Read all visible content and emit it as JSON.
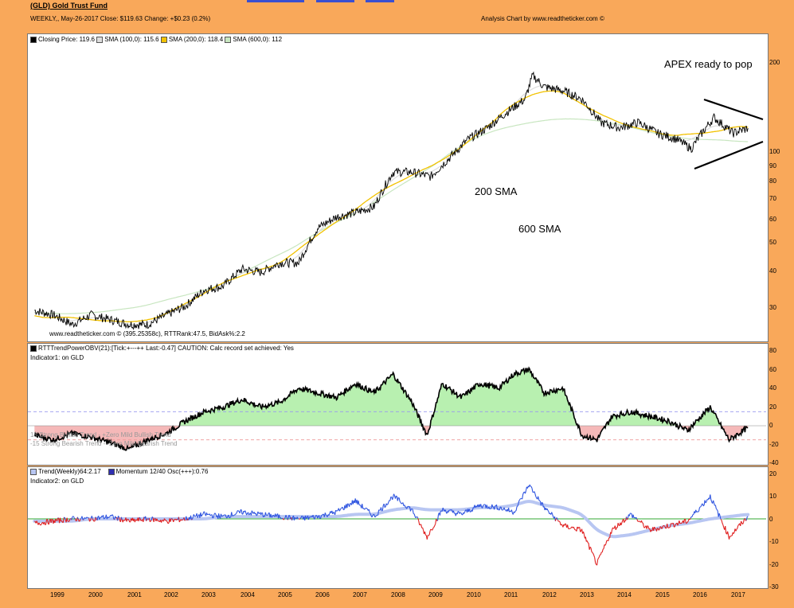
{
  "header": {
    "title": "(GLD) Gold Trust Fund",
    "info": "WEEKLY,, May-26-2017   Close: $119.63   Change: +$0.23  (0.2%)",
    "credit": "Analysis Chart by www.readtheticker.com ©"
  },
  "panel1": {
    "legend": [
      {
        "label": "Closing Price: 119.6",
        "color": "#000000"
      },
      {
        "label": "SMA (100,0): 115.6",
        "color": "#dddddd"
      },
      {
        "label": "SMA (200,0): 118.4",
        "color": "#f2c200"
      },
      {
        "label": "SMA (600,0): 112",
        "color": "#c8e6c0"
      }
    ],
    "footer": "www.readtheticker.com © (395.25358c), RTTRank:47.5, BidAsk%:2.2",
    "annotations": {
      "apex": "APEX ready to pop",
      "sma200": "200 SMA",
      "sma600": "600 SMA"
    },
    "yticks": [
      "200",
      "100",
      "90",
      "80",
      "70",
      "60",
      "50",
      "40",
      "30"
    ]
  },
  "panel2": {
    "title": "RTTTrendPowerOBV(21):[Tick:+---++ Last:-0.47] CAUTION: Calc record set achieved: Yes",
    "sub": "Indicator1: on GLD",
    "band_upper": "15 Strong Bullish Trend - +Zero Mild Bullish Trend",
    "band_lower": "-15 Strong Bearish Trend - -Zero Mild Bearish Trend",
    "yticks": [
      "80",
      "60",
      "40",
      "20",
      "0",
      "-20",
      "-40"
    ]
  },
  "panel3": {
    "legend1": "Trend(Weekly)64:2.17",
    "legend2": "Momentum 12/40 Osc(+++):0.76",
    "sub": "Indicator2: on GLD",
    "yticks": [
      "20",
      "10",
      "0",
      "-10",
      "-20",
      "-30"
    ]
  },
  "xticks": [
    "1999",
    "2000",
    "2001",
    "2002",
    "2003",
    "2004",
    "2005",
    "2006",
    "2007",
    "2008",
    "2009",
    "2010",
    "2011",
    "2012",
    "2013",
    "2014",
    "2015",
    "2016",
    "2017"
  ],
  "colors": {
    "background": "#F9A85A",
    "price": "#000000",
    "sma100": "#dddddd",
    "sma200": "#f2c200",
    "sma600": "#c8e6c0",
    "obv_pos": "#b8f0b0",
    "obv_neg": "#f5b8b8",
    "momentum_pos": "#2f55e0",
    "momentum_neg": "#e02020",
    "trend": "#b8c6f2"
  },
  "chart_data": [
    {
      "type": "line",
      "title": "(GLD) Gold Trust Fund",
      "scale": "log",
      "x": [
        1998.5,
        1999.0,
        1999.5,
        2000.0,
        2000.5,
        2001.0,
        2001.5,
        2002.0,
        2002.5,
        2003.0,
        2003.5,
        2004.0,
        2004.5,
        2005.0,
        2005.5,
        2006.0,
        2006.5,
        2007.0,
        2007.5,
        2008.0,
        2008.5,
        2009.0,
        2009.5,
        2010.0,
        2010.5,
        2011.0,
        2011.5,
        2011.7,
        2012.0,
        2012.5,
        2013.0,
        2013.5,
        2014.0,
        2014.5,
        2015.0,
        2015.5,
        2015.9,
        2016.5,
        2017.0,
        2017.4
      ],
      "series": [
        {
          "values": [
            29,
            28,
            26,
            28,
            27,
            26,
            26,
            28,
            30,
            34,
            35,
            40,
            39,
            42,
            42,
            55,
            60,
            62,
            65,
            85,
            85,
            82,
            95,
            110,
            120,
            135,
            150,
            180,
            165,
            160,
            150,
            125,
            120,
            125,
            115,
            110,
            102,
            130,
            115,
            119.6
          ]
        }
      ]
    },
    {
      "type": "area",
      "title": "RTTTrendPowerOBV(21)",
      "x": [
        1998.5,
        1999.0,
        1999.5,
        2000.0,
        2000.5,
        2001.0,
        2001.5,
        2002.0,
        2002.5,
        2003.0,
        2003.5,
        2004.0,
        2004.5,
        2005.0,
        2005.5,
        2006.0,
        2006.5,
        2007.0,
        2007.5,
        2008.0,
        2008.5,
        2008.9,
        2009.3,
        2009.8,
        2010.3,
        2010.8,
        2011.2,
        2011.6,
        2012.0,
        2012.5,
        2013.0,
        2013.4,
        2013.8,
        2014.3,
        2014.8,
        2015.3,
        2015.8,
        2016.4,
        2016.9,
        2017.4
      ],
      "series": [
        {
          "values": [
            -10,
            -15,
            -8,
            -12,
            -18,
            -25,
            -15,
            -8,
            5,
            15,
            20,
            28,
            20,
            25,
            40,
            35,
            30,
            45,
            35,
            55,
            25,
            -10,
            45,
            30,
            45,
            40,
            55,
            60,
            35,
            40,
            -10,
            -15,
            10,
            15,
            10,
            5,
            -5,
            20,
            -15,
            -2
          ]
        }
      ]
    },
    {
      "type": "line",
      "title": "Momentum 12/40 Osc",
      "x": [
        1998.5,
        1999.0,
        1999.5,
        2000.0,
        2000.5,
        2001.0,
        2001.5,
        2002.0,
        2002.5,
        2003.0,
        2003.5,
        2004.0,
        2004.5,
        2005.0,
        2005.5,
        2006.0,
        2006.5,
        2007.0,
        2007.5,
        2008.0,
        2008.5,
        2008.9,
        2009.3,
        2009.8,
        2010.3,
        2010.8,
        2011.2,
        2011.6,
        2012.0,
        2012.5,
        2013.0,
        2013.4,
        2013.8,
        2014.3,
        2014.8,
        2015.3,
        2015.8,
        2016.4,
        2016.9,
        2017.4
      ],
      "series": [
        {
          "name": "Momentum 12/40 Osc(+++):0.76",
          "values": [
            -2,
            -1,
            0,
            0,
            1,
            -1,
            0,
            -1,
            0,
            2,
            1,
            3,
            2,
            1,
            0,
            1,
            3,
            8,
            1,
            10,
            4,
            -8,
            4,
            2,
            6,
            5,
            3,
            15,
            5,
            -3,
            -5,
            -20,
            -5,
            2,
            -5,
            -3,
            -1,
            10,
            -8,
            1
          ]
        },
        {
          "name": "Trend(Weekly)64:2.17",
          "values": [
            -1,
            -1,
            -1,
            0,
            0,
            0,
            0,
            0,
            0,
            0,
            1,
            1,
            1,
            1,
            1,
            1,
            1,
            2,
            2,
            4,
            5,
            4,
            4,
            4,
            5,
            5,
            6,
            8,
            6,
            5,
            2,
            -5,
            -8,
            -7,
            -5,
            -3,
            -2,
            0,
            1,
            2
          ]
        }
      ]
    }
  ]
}
